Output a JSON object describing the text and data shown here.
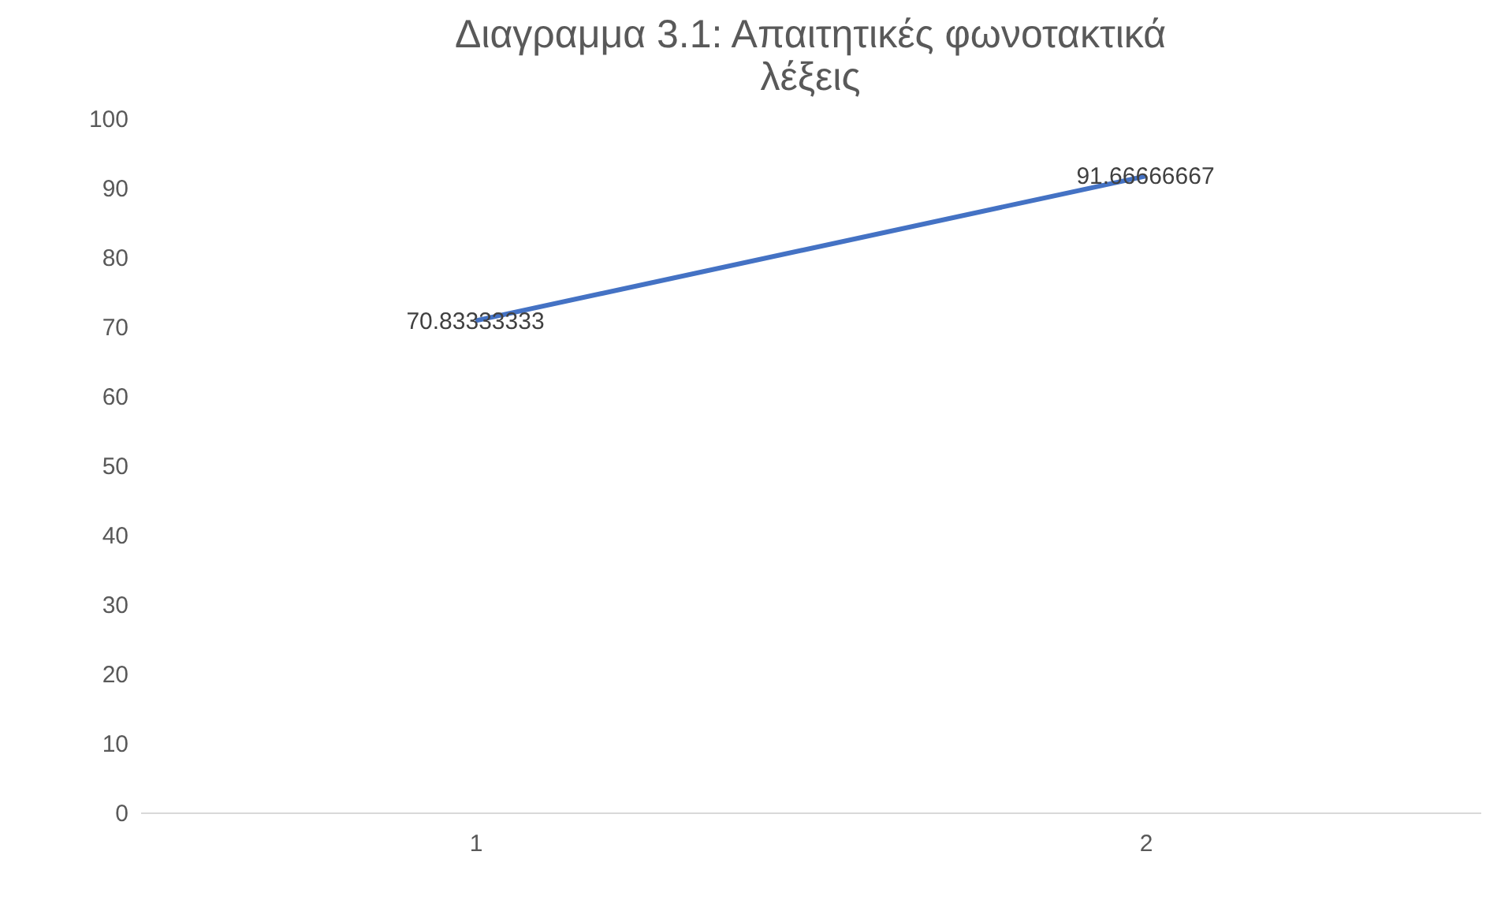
{
  "chart_data": {
    "type": "line",
    "title": "Διαγραμμα 3.1: Απαιτητικές φωνοτακτικά λέξεις",
    "categories": [
      "1",
      "2"
    ],
    "series": [
      {
        "color": "#4472c4",
        "values": [
          70.83333333,
          91.66666667
        ]
      }
    ],
    "ylim": [
      0,
      100
    ],
    "yticks": [
      0,
      10,
      20,
      30,
      40,
      50,
      60,
      70,
      80,
      90,
      100
    ],
    "data_labels": true,
    "grid": false,
    "marker": "none",
    "line_style": "solid"
  }
}
